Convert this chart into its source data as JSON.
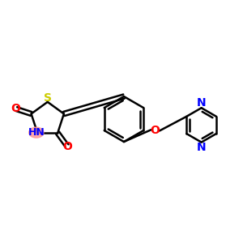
{
  "background_color": "#ffffff",
  "bond_color": "#000000",
  "S_color": "#cccc00",
  "N_color": "#0000ff",
  "O_color": "#ff0000",
  "highlight_color": "#ff9999",
  "lw": 1.8,
  "fs": 10,
  "xlim": [
    0,
    10
  ],
  "ylim": [
    2,
    8
  ],
  "figsize": [
    3.0,
    3.0
  ],
  "dpi": 100
}
